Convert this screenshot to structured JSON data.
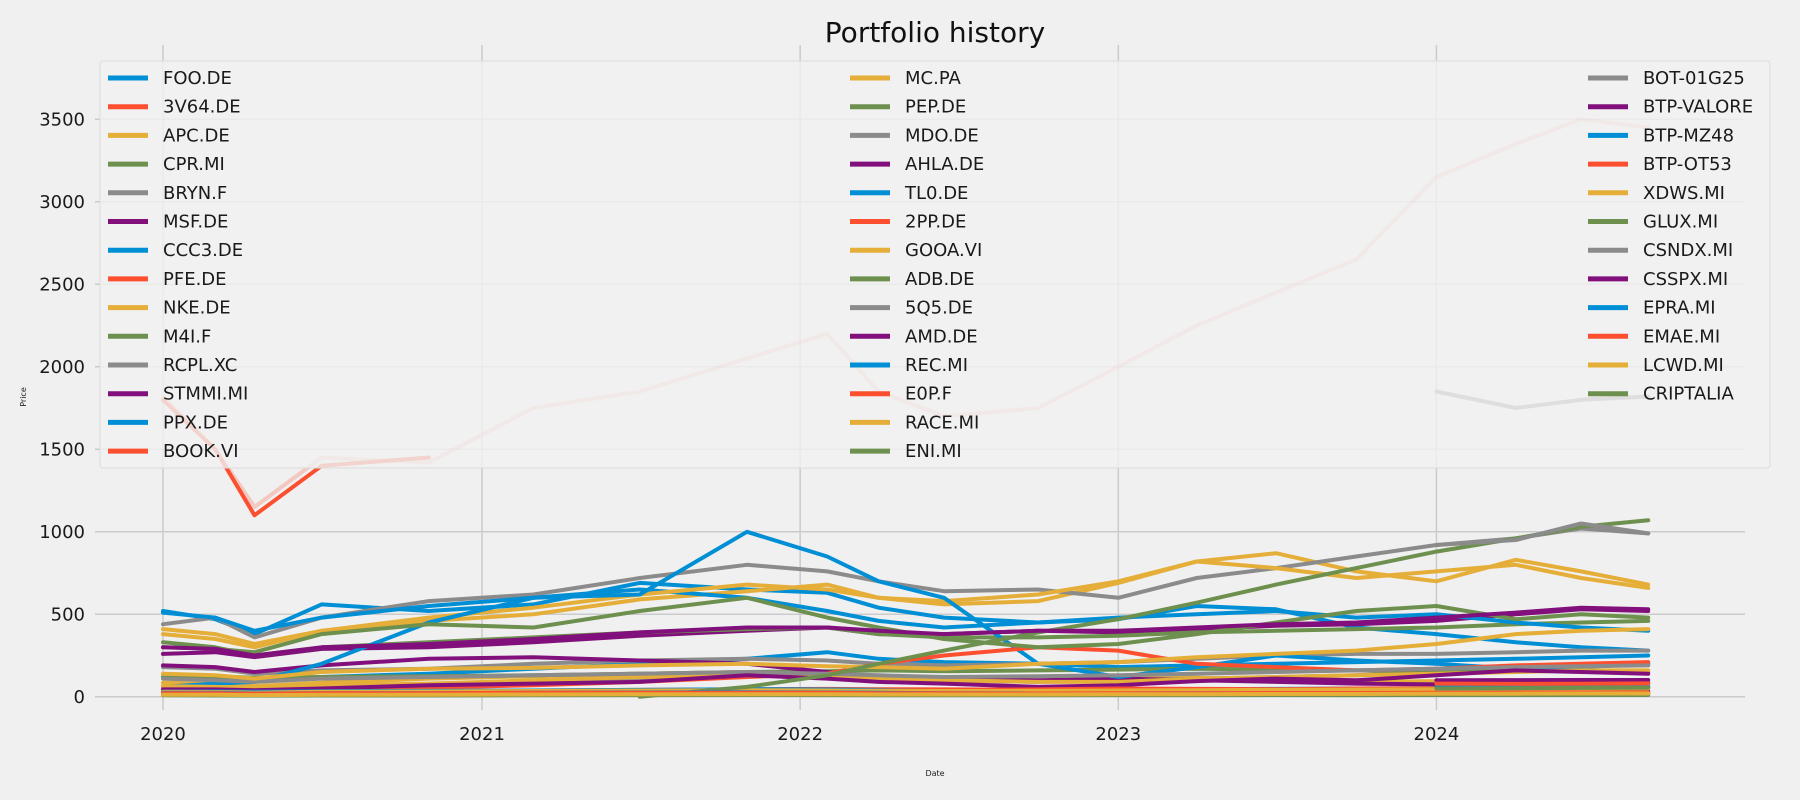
{
  "chart_data": {
    "type": "line",
    "title": "Portfolio history",
    "xlabel": "Date",
    "ylabel": "Price",
    "xlim": [
      "2019-10-15",
      "2024-12-20"
    ],
    "ylim": [
      -80,
      3950
    ],
    "x_ticks": [
      "2020",
      "2021",
      "2022",
      "2023",
      "2024"
    ],
    "y_ticks": [
      0,
      500,
      1000,
      1500,
      2000,
      2500,
      3000,
      3500
    ],
    "grid": true,
    "legend": {
      "placement": "top",
      "columns": 3
    },
    "palette": [
      "#008fd5",
      "#fc4f30",
      "#e5ae38",
      "#6d904f",
      "#8b8b8b",
      "#810f7c"
    ],
    "x": [
      "2020-01-01",
      "2020-03-01",
      "2020-04-15",
      "2020-07-01",
      "2020-11-01",
      "2021-03-01",
      "2021-07-01",
      "2021-11-01",
      "2022-02-01",
      "2022-04-01",
      "2022-06-15",
      "2022-10-01",
      "2023-01-01",
      "2023-04-01",
      "2023-07-01",
      "2023-10-01",
      "2024-01-01",
      "2024-04-01",
      "2024-06-15",
      "2024-08-31"
    ],
    "series": [
      {
        "name": "FOO.DE",
        "values": [
          520,
          470,
          380,
          560,
          520,
          560,
          690,
          650,
          630,
          540,
          480,
          450,
          470,
          550,
          530,
          420,
          380,
          330,
          300,
          280
        ]
      },
      {
        "name": "3V64.DE",
        "values": [
          1820,
          1500,
          1150,
          1450,
          1420,
          1750,
          1850,
          2050,
          2200,
          1850,
          1700,
          1750,
          2000,
          2250,
          2450,
          2650,
          3150,
          3350,
          3500,
          3450
        ]
      },
      {
        "name": "APC.DE",
        "values": [
          380,
          350,
          300,
          400,
          460,
          500,
          590,
          640,
          680,
          600,
          560,
          580,
          690,
          820,
          870,
          760,
          700,
          830,
          760,
          680
        ]
      },
      {
        "name": "CPR.MI",
        "values": [
          9,
          8,
          7,
          8,
          9,
          10,
          11,
          11,
          10,
          9,
          9,
          9,
          10,
          10,
          11,
          10,
          11,
          11,
          11,
          11
        ]
      },
      {
        "name": "BRYN.F",
        "values": [
          440,
          480,
          360,
          480,
          580,
          620,
          720,
          800,
          760,
          700,
          640,
          650,
          600,
          720,
          780,
          850,
          920,
          960,
          1020,
          990
        ]
      },
      {
        "name": "MSF.DE",
        "values": [
          260,
          270,
          240,
          290,
          300,
          330,
          370,
          400,
          420,
          380,
          380,
          400,
          390,
          410,
          430,
          440,
          460,
          500,
          530,
          520
        ]
      },
      {
        "name": "CCC3.DE",
        "values": [
          120,
          110,
          95,
          120,
          140,
          170,
          200,
          230,
          270,
          230,
          210,
          200,
          180,
          190,
          200,
          210,
          220,
          230,
          240,
          250
        ]
      },
      {
        "name": "PFE.DE",
        "values": [
          35,
          35,
          32,
          34,
          36,
          38,
          42,
          46,
          48,
          46,
          45,
          43,
          40,
          35,
          32,
          28,
          26,
          25,
          26,
          27
        ]
      },
      {
        "name": "NKE.DE",
        "values": [
          85,
          78,
          65,
          85,
          110,
          125,
          140,
          150,
          130,
          115,
          100,
          95,
          110,
          115,
          100,
          90,
          95,
          85,
          78,
          80
        ]
      },
      {
        "name": "M4I.F",
        "values": [
          330,
          300,
          250,
          300,
          330,
          360,
          390,
          410,
          420,
          380,
          360,
          360,
          370,
          390,
          400,
          410,
          420,
          440,
          450,
          460
        ]
      },
      {
        "name": "RCPL.XC",
        "values": [
          40,
          38,
          30,
          40,
          60,
          80,
          110,
          130,
          120,
          110,
          100,
          90,
          100,
          110,
          120,
          130,
          150,
          170,
          190,
          200
        ]
      },
      {
        "name": "STMMI.MI",
        "values": [
          18,
          16,
          14,
          20,
          24,
          30,
          38,
          44,
          40,
          36,
          32,
          34,
          36,
          38,
          40,
          36,
          38,
          40,
          36,
          34
        ]
      },
      {
        "name": "PPX.DE",
        "values": [
          510,
          480,
          400,
          480,
          550,
          600,
          650,
          600,
          520,
          460,
          420,
          450,
          480,
          500,
          520,
          480,
          500,
          450,
          420,
          400
        ]
      },
      {
        "name": "BOOK.VI",
        "values": [
          1800,
          1500,
          1100,
          1400,
          1450,
          null,
          null,
          null,
          null,
          null,
          null,
          null,
          null,
          null,
          null,
          null,
          null,
          null,
          null,
          null
        ]
      },
      {
        "name": "MC.PA",
        "values": [
          410,
          380,
          320,
          400,
          480,
          540,
          620,
          680,
          650,
          600,
          580,
          620,
          700,
          820,
          780,
          720,
          760,
          800,
          720,
          660
        ]
      },
      {
        "name": "PEP.DE",
        "values": [
          120,
          125,
          115,
          120,
          125,
          130,
          140,
          150,
          155,
          160,
          155,
          160,
          165,
          170,
          165,
          160,
          155,
          160,
          155,
          150
        ]
      },
      {
        "name": "MDO.DE",
        "values": [
          180,
          170,
          140,
          160,
          170,
          200,
          220,
          230,
          220,
          200,
          190,
          200,
          210,
          230,
          250,
          260,
          260,
          270,
          280,
          280
        ]
      },
      {
        "name": "AHLA.DE",
        "values": [
          190,
          180,
          150,
          190,
          230,
          240,
          220,
          200,
          150,
          120,
          110,
          100,
          110,
          100,
          90,
          80,
          75,
          70,
          80,
          85
        ]
      },
      {
        "name": "TL0.DE",
        "values": [
          60,
          80,
          90,
          200,
          450,
          600,
          620,
          1000,
          850,
          700,
          600,
          200,
          120,
          180,
          250,
          220,
          200,
          170,
          180,
          200
        ]
      },
      {
        "name": "2PP.DE",
        "values": [
          60,
          55,
          45,
          50,
          55,
          70,
          90,
          120,
          140,
          200,
          250,
          300,
          280,
          200,
          180,
          160,
          170,
          190,
          200,
          210
        ]
      },
      {
        "name": "GOOA.VI",
        "values": [
          65,
          60,
          55,
          70,
          80,
          100,
          120,
          130,
          120,
          110,
          100,
          90,
          90,
          110,
          120,
          130,
          140,
          150,
          160,
          160
        ]
      },
      {
        "name": "ADB.DE",
        "values": [
          300,
          290,
          270,
          380,
          440,
          420,
          520,
          600,
          480,
          420,
          350,
          300,
          320,
          380,
          450,
          520,
          550,
          470,
          500,
          480
        ]
      },
      {
        "name": "5Q5.DE",
        "values": [
          110,
          100,
          90,
          110,
          120,
          130,
          140,
          150,
          140,
          130,
          120,
          125,
          130,
          140,
          150,
          160,
          170,
          180,
          185,
          190
        ]
      },
      {
        "name": "AMD.DE",
        "values": [
          45,
          45,
          40,
          50,
          70,
          80,
          90,
          130,
          110,
          90,
          80,
          60,
          70,
          95,
          110,
          100,
          130,
          160,
          150,
          140
        ]
      },
      {
        "name": "REC.MI",
        "values": [
          30,
          32,
          30,
          34,
          36,
          38,
          42,
          46,
          44,
          42,
          40,
          42,
          44,
          46,
          48,
          50,
          52,
          54,
          56,
          56
        ]
      },
      {
        "name": "E0P.F",
        "values": [
          20,
          22,
          20,
          24,
          26,
          28,
          30,
          32,
          34,
          38,
          42,
          45,
          50,
          48,
          46,
          50,
          52,
          54,
          56,
          58
        ]
      },
      {
        "name": "RACE.MI",
        "values": [
          140,
          130,
          110,
          150,
          170,
          175,
          190,
          200,
          185,
          180,
          170,
          200,
          210,
          240,
          260,
          280,
          320,
          380,
          400,
          410
        ]
      },
      {
        "name": "ENI.MI",
        "values": [
          13,
          12,
          8,
          8,
          8,
          10,
          10,
          11,
          12,
          13,
          13,
          14,
          14,
          14,
          14,
          15,
          15,
          15,
          14,
          14
        ]
      },
      {
        "name": "BOT-01G25",
        "values": [
          null,
          null,
          null,
          null,
          null,
          null,
          null,
          null,
          null,
          null,
          null,
          null,
          null,
          null,
          null,
          null,
          1850,
          1750,
          1800,
          1820
        ]
      },
      {
        "name": "BTP-VALORE",
        "values": [
          null,
          null,
          null,
          null,
          null,
          null,
          null,
          null,
          null,
          null,
          null,
          null,
          null,
          null,
          null,
          null,
          100,
          101,
          102,
          102
        ]
      },
      {
        "name": "BTP-MZ48",
        "values": [
          null,
          null,
          null,
          null,
          null,
          null,
          null,
          null,
          null,
          null,
          null,
          null,
          null,
          null,
          null,
          null,
          60,
          62,
          61,
          63
        ]
      },
      {
        "name": "BTP-OT53",
        "values": [
          null,
          null,
          null,
          null,
          null,
          null,
          null,
          null,
          null,
          null,
          null,
          null,
          null,
          null,
          null,
          null,
          80,
          78,
          79,
          81
        ]
      },
      {
        "name": "XDWS.MI",
        "values": [
          30,
          29,
          25,
          30,
          32,
          35,
          38,
          40,
          38,
          36,
          35,
          36,
          38,
          40,
          42,
          44,
          46,
          48,
          50,
          51
        ]
      },
      {
        "name": "GLUX.MI",
        "values": [
          null,
          null,
          null,
          null,
          null,
          null,
          0,
          60,
          130,
          200,
          280,
          390,
          470,
          570,
          680,
          780,
          880,
          960,
          1030,
          1070
        ]
      },
      {
        "name": "CSNDX.MI",
        "values": [
          null,
          null,
          null,
          null,
          null,
          null,
          null,
          null,
          null,
          null,
          null,
          null,
          null,
          null,
          null,
          null,
          920,
          950,
          1050,
          990
        ]
      },
      {
        "name": "CSSPX.MI",
        "values": [
          300,
          290,
          250,
          300,
          320,
          350,
          390,
          420,
          420,
          400,
          380,
          400,
          400,
          420,
          440,
          450,
          480,
          510,
          540,
          530
        ]
      },
      {
        "name": "EPRA.MI",
        "values": [
          25,
          24,
          20,
          22,
          22,
          24,
          26,
          27,
          26,
          24,
          22,
          20,
          20,
          21,
          20,
          19,
          20,
          21,
          22,
          23
        ]
      },
      {
        "name": "EMAE.MI",
        "values": [
          22,
          21,
          18,
          21,
          22,
          24,
          25,
          25,
          24,
          22,
          21,
          20,
          21,
          22,
          23,
          23,
          24,
          25,
          26,
          26
        ]
      },
      {
        "name": "LCWD.MI",
        "values": [
          12,
          12,
          10,
          12,
          13,
          14,
          15,
          16,
          15,
          14,
          14,
          14,
          15,
          16,
          17,
          17,
          18,
          19,
          20,
          20
        ]
      },
      {
        "name": "CRIPTALIA",
        "values": [
          null,
          null,
          null,
          null,
          null,
          null,
          null,
          null,
          null,
          null,
          null,
          null,
          null,
          null,
          null,
          null,
          50,
          52,
          54,
          56
        ]
      }
    ]
  }
}
